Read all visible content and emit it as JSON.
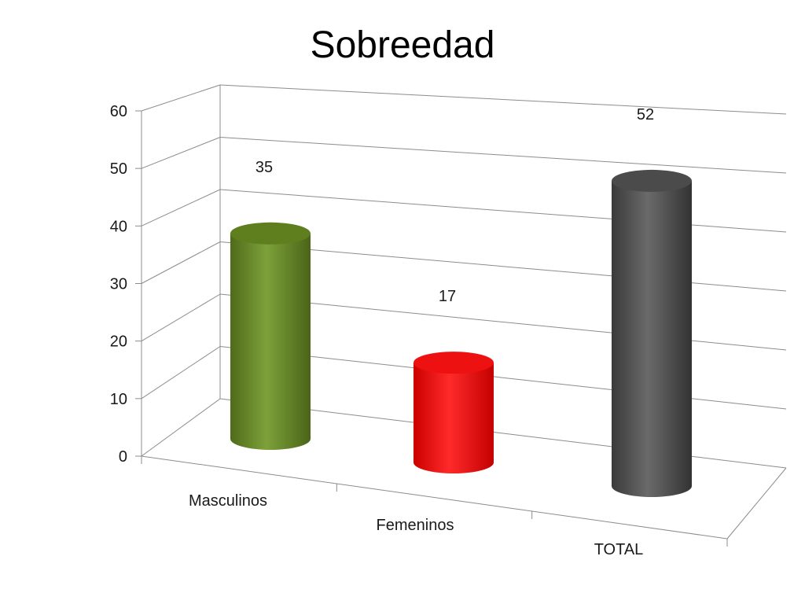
{
  "chart_data": {
    "type": "bar",
    "style": "3d-cylinder",
    "title": "Sobreedad",
    "categories": [
      "Masculinos",
      "Femeninos",
      "TOTAL"
    ],
    "values": [
      35,
      17,
      52
    ],
    "data_labels": [
      "35",
      "17",
      "52"
    ],
    "colors": [
      "#6b8e23",
      "#ff0000",
      "#555555"
    ],
    "ylim": [
      0,
      60
    ],
    "yticks": [
      "0",
      "10",
      "20",
      "30",
      "40",
      "50",
      "60"
    ],
    "grid": true,
    "legend": "none"
  }
}
